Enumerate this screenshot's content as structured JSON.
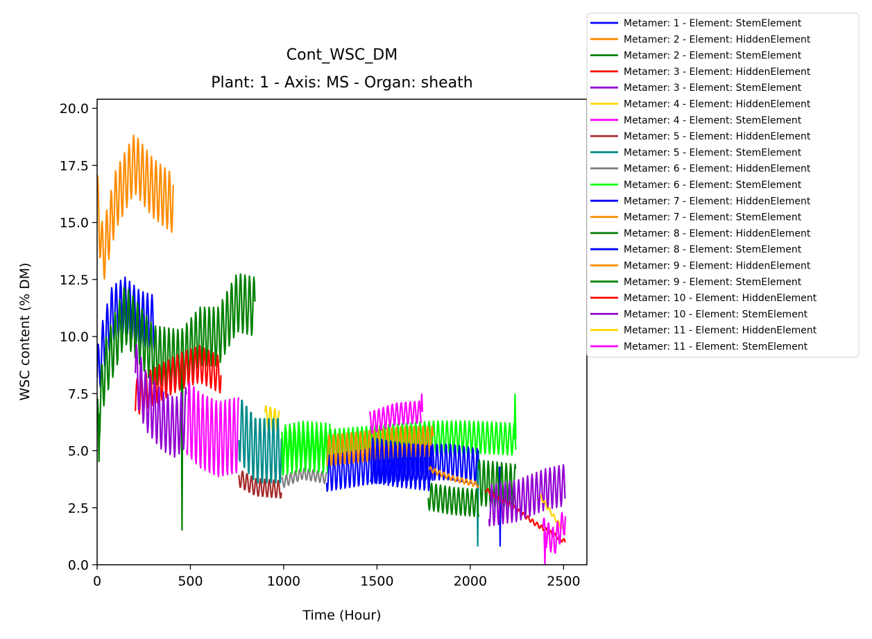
{
  "chart_data": {
    "type": "line",
    "title": "Cont_WSC_DM",
    "subtitle": "Plant: 1 - Axis: MS - Organ: sheath",
    "xlabel": "Time (Hour)",
    "ylabel": "WSC content (% DM)",
    "xlim": [
      0,
      2625
    ],
    "ylim": [
      0,
      20.4
    ],
    "xticks": [
      0,
      500,
      1000,
      1500,
      2000,
      2500
    ],
    "xtick_labels": [
      "0",
      "500",
      "1000",
      "1500",
      "2000",
      "2500"
    ],
    "yticks": [
      0,
      2.5,
      5,
      7.5,
      10,
      12.5,
      15,
      17.5,
      20
    ],
    "ytick_labels": [
      "0.0",
      "2.5",
      "5.0",
      "7.5",
      "10.0",
      "12.5",
      "15.0",
      "17.5",
      "20.0"
    ],
    "grid": false,
    "legend_position": "outside-top-right",
    "series": [
      {
        "name": "Metamer: 1 - Element: StemElement",
        "color": "#0000ff",
        "t_start": 0,
        "t_end": 308,
        "amplitude": 1.2,
        "trend": [
          [
            0,
            8.2
          ],
          [
            30,
            9.5
          ],
          [
            80,
            11.0
          ],
          [
            150,
            11.4
          ],
          [
            230,
            10.8
          ],
          [
            308,
            10.6
          ]
        ]
      },
      {
        "name": "Metamer: 2 - Element: HiddenElement",
        "color": "#ff8c00",
        "t_start": 0,
        "t_end": 410,
        "amplitude": 1.3,
        "trend": [
          [
            0,
            16.0
          ],
          [
            30,
            13.5
          ],
          [
            100,
            16.0
          ],
          [
            200,
            17.6
          ],
          [
            300,
            16.5
          ],
          [
            410,
            15.8
          ]
        ]
      },
      {
        "name": "Metamer: 2 - Element: StemElement",
        "color": "#008000",
        "t_start": 0,
        "t_end": 848,
        "amplitude": 1.3,
        "trend": [
          [
            0,
            6.0
          ],
          [
            40,
            8.5
          ],
          [
            150,
            11.0
          ],
          [
            300,
            9.2
          ],
          [
            450,
            9.0
          ],
          [
            550,
            10.0
          ],
          [
            650,
            10.0
          ],
          [
            750,
            11.5
          ],
          [
            848,
            11.3
          ]
        ],
        "spikes": [
          [
            10,
            4.5
          ],
          [
            455,
            1.5
          ]
        ]
      },
      {
        "name": "Metamer: 3 - Element: HiddenElement",
        "color": "#ff0000",
        "t_start": 205,
        "t_end": 665,
        "amplitude": 0.8,
        "trend": [
          [
            205,
            7.3
          ],
          [
            300,
            7.8
          ],
          [
            450,
            8.5
          ],
          [
            550,
            8.8
          ],
          [
            665,
            8.3
          ]
        ]
      },
      {
        "name": "Metamer: 3 - Element: StemElement",
        "color": "#9400d3",
        "t_start": 205,
        "t_end": 480,
        "amplitude": 1.3,
        "trend": [
          [
            205,
            8.5
          ],
          [
            260,
            7.2
          ],
          [
            350,
            6.3
          ],
          [
            420,
            6.0
          ],
          [
            480,
            6.5
          ]
        ]
      },
      {
        "name": "Metamer: 4 - Element: HiddenElement",
        "color": "#ffd700",
        "t_start": 900,
        "t_end": 975,
        "amplitude": 0.5,
        "trend": [
          [
            900,
            6.5
          ],
          [
            975,
            6.3
          ]
        ]
      },
      {
        "name": "Metamer: 4 - Element: StemElement",
        "color": "#ff00ff",
        "t_start": 480,
        "t_end": 760,
        "amplitude": 1.7,
        "trend": [
          [
            480,
            6.5
          ],
          [
            550,
            5.9
          ],
          [
            650,
            5.5
          ],
          [
            760,
            5.7
          ]
        ]
      },
      {
        "name": "Metamer: 5 - Element: HiddenElement",
        "color": "#a52a2a",
        "t_start": 760,
        "t_end": 990,
        "amplitude": 0.4,
        "trend": [
          [
            760,
            3.8
          ],
          [
            850,
            3.4
          ],
          [
            990,
            3.3
          ]
        ]
      },
      {
        "name": "Metamer: 5 - Element: StemElement",
        "color": "#008b8b",
        "t_start": 760,
        "t_end": 990,
        "amplitude": 1.5,
        "trend": [
          [
            760,
            6.0
          ],
          [
            850,
            5.0
          ],
          [
            990,
            5.0
          ]
        ],
        "spikes": [
          [
            2040,
            0.8
          ]
        ]
      },
      {
        "name": "Metamer: 6 - Element: HiddenElement",
        "color": "#808080",
        "t_start": 990,
        "t_end": 1230,
        "amplitude": 0.25,
        "trend": [
          [
            990,
            3.6
          ],
          [
            1100,
            4.0
          ],
          [
            1230,
            3.8
          ]
        ]
      },
      {
        "name": "Metamer: 6 - Element: StemElement",
        "color": "#00ff00",
        "t_start": 990,
        "t_end": 2245,
        "amplitude": 0.7,
        "trend": [
          [
            990,
            5.3
          ],
          [
            1200,
            5.2
          ],
          [
            1500,
            5.4
          ],
          [
            1800,
            5.6
          ],
          [
            2000,
            5.6
          ],
          [
            2245,
            5.5
          ]
        ],
        "spikes": [
          [
            2240,
            7.5
          ]
        ]
      },
      {
        "name": "Metamer: 6 - Element: StemElement",
        "color": "#00ff00",
        "t_start": 990,
        "t_end": 1250,
        "amplitude": 1.1,
        "trend": [
          [
            990,
            5.0
          ],
          [
            1100,
            5.2
          ],
          [
            1250,
            5.1
          ]
        ]
      },
      {
        "name": "Metamer: 7 - Element: HiddenElement",
        "color": "#0000ff",
        "t_start": 1230,
        "t_end": 2045,
        "amplitude": 0.8,
        "trend": [
          [
            1230,
            4.0
          ],
          [
            1450,
            4.3
          ],
          [
            1700,
            4.5
          ],
          [
            1900,
            4.5
          ],
          [
            2045,
            4.3
          ]
        ],
        "spikes": [
          [
            2160,
            0.8
          ]
        ]
      },
      {
        "name": "Metamer: 7 - Element: StemElement",
        "color": "#ff8c00",
        "t_start": 1230,
        "t_end": 1800,
        "amplitude": 0.7,
        "trend": [
          [
            1230,
            5.0
          ],
          [
            1450,
            5.2
          ],
          [
            1650,
            5.4
          ],
          [
            1800,
            5.4
          ]
        ]
      },
      {
        "name": "Metamer: 8 - Element: HiddenElement",
        "color": "#008000",
        "t_start": 1775,
        "t_end": 2045,
        "amplitude": 0.6,
        "trend": [
          [
            1775,
            3.0
          ],
          [
            1900,
            2.8
          ],
          [
            2045,
            2.7
          ]
        ]
      },
      {
        "name": "Metamer: 8 - Element: StemElement",
        "color": "#0000ff",
        "t_start": 1465,
        "t_end": 1800,
        "amplitude": 1.0,
        "trend": [
          [
            1465,
            4.6
          ],
          [
            1600,
            4.4
          ],
          [
            1800,
            4.2
          ]
        ]
      },
      {
        "name": "Metamer: 9 - Element: HiddenElement",
        "color": "#ff8c00",
        "t_start": 1780,
        "t_end": 2045,
        "amplitude": 0.12,
        "trend": [
          [
            1780,
            4.2
          ],
          [
            1900,
            3.8
          ],
          [
            2045,
            3.5
          ]
        ]
      },
      {
        "name": "Metamer: 9 - Element: StemElement",
        "color": "#008000",
        "t_start": 2045,
        "t_end": 2245,
        "amplitude": 1.0,
        "trend": [
          [
            2045,
            3.6
          ],
          [
            2150,
            3.5
          ],
          [
            2245,
            3.4
          ]
        ]
      },
      {
        "name": "Metamer: 10 - Element: HiddenElement",
        "color": "#ff0000",
        "t_start": 2080,
        "t_end": 2510,
        "amplitude": 0.1,
        "trend": [
          [
            2080,
            3.3
          ],
          [
            2200,
            2.7
          ],
          [
            2350,
            1.8
          ],
          [
            2510,
            1.0
          ]
        ]
      },
      {
        "name": "Metamer: 10 - Element: StemElement",
        "color": "#9400d3",
        "t_start": 2100,
        "t_end": 2510,
        "amplitude": 0.9,
        "trend": [
          [
            2100,
            2.6
          ],
          [
            2250,
            2.8
          ],
          [
            2400,
            3.3
          ],
          [
            2510,
            3.5
          ]
        ]
      },
      {
        "name": "Metamer: 11 - Element: HiddenElement",
        "color": "#ffd700",
        "t_start": 2375,
        "t_end": 2510,
        "amplitude": 0.1,
        "trend": [
          [
            2375,
            3.0
          ],
          [
            2440,
            2.2
          ],
          [
            2510,
            1.4
          ]
        ]
      },
      {
        "name": "Metamer: 11 - Element: StemElement",
        "color": "#ff00ff",
        "t_start": 1460,
        "t_end": 1740,
        "amplitude": 0.5,
        "trend": [
          [
            1460,
            6.2
          ],
          [
            1600,
            6.6
          ],
          [
            1740,
            6.7
          ]
        ],
        "spikes": [
          [
            1740,
            7.5
          ]
        ]
      },
      {
        "name": "Metamer: 11 - Element: StemElement",
        "color": "#ff00ff",
        "t_start": 2390,
        "t_end": 2510,
        "amplitude": 0.6,
        "trend": [
          [
            2390,
            1.5
          ],
          [
            2450,
            1.0
          ],
          [
            2510,
            2.0
          ]
        ],
        "spikes": [
          [
            2400,
            0.0
          ]
        ]
      }
    ]
  }
}
